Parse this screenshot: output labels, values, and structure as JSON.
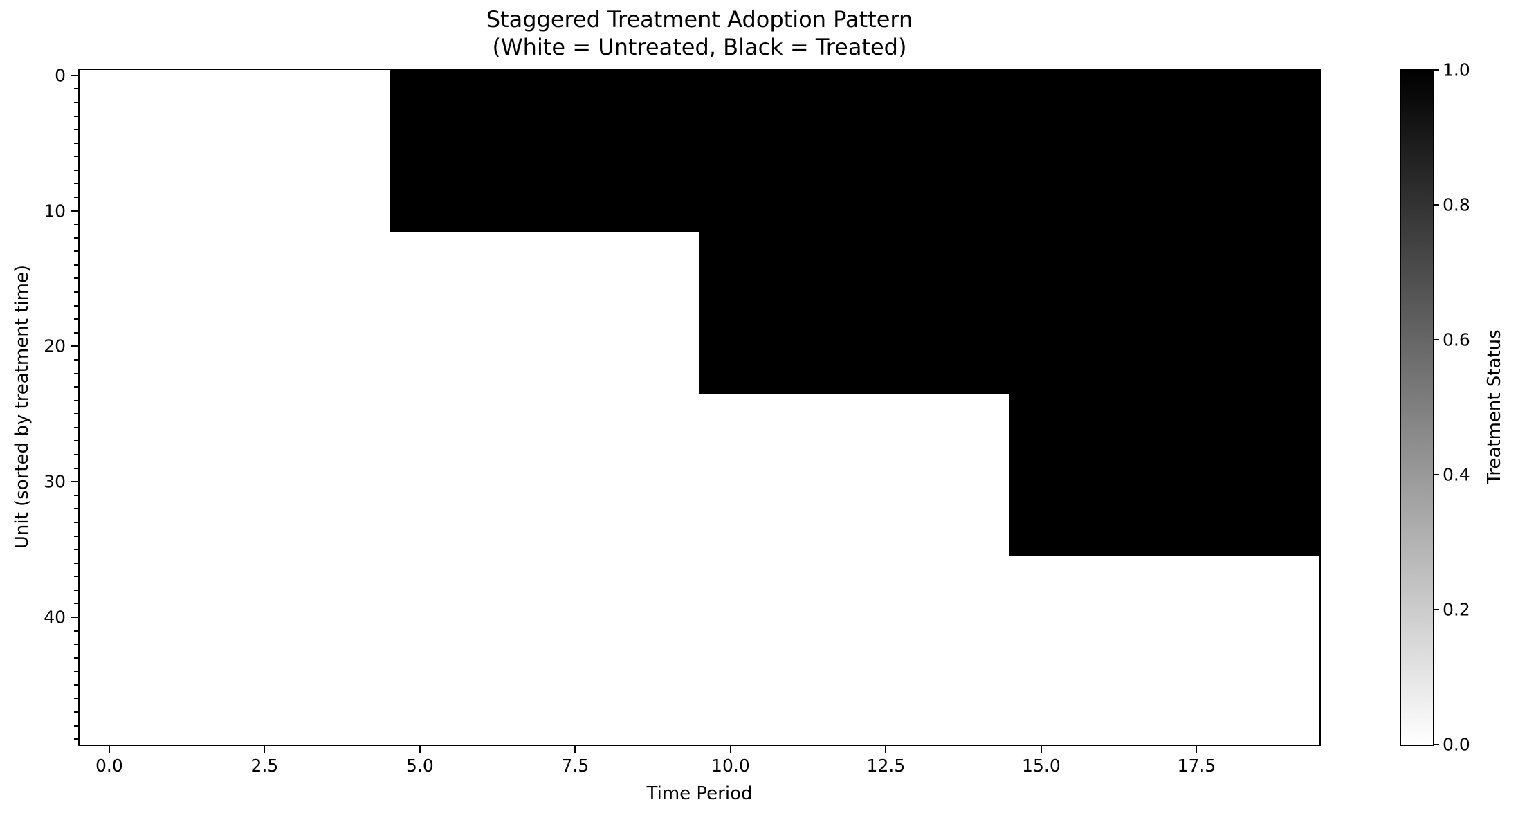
{
  "figure": {
    "background": "#ffffff"
  },
  "chart_data": {
    "type": "heatmap",
    "title_lines": [
      "Staggered Treatment Adoption Pattern",
      "(White = Untreated, Black = Treated)"
    ],
    "xlabel": "Time Period",
    "ylabel": "Unit (sorted by treatment time)",
    "colorbar_label": "Treatment Status",
    "n_units": 50,
    "n_periods": 20,
    "x_range": [
      -0.5,
      19.5
    ],
    "y_range": [
      49.5,
      -0.5
    ],
    "value_range": [
      0.0,
      1.0
    ],
    "grid": false,
    "colors": {
      "treated": "#000000",
      "untreated": "#ffffff"
    },
    "x_ticks": [
      {
        "value": 0.0,
        "label": "0.0"
      },
      {
        "value": 2.5,
        "label": "2.5"
      },
      {
        "value": 5.0,
        "label": "5.0"
      },
      {
        "value": 7.5,
        "label": "7.5"
      },
      {
        "value": 10.0,
        "label": "10.0"
      },
      {
        "value": 12.5,
        "label": "12.5"
      },
      {
        "value": 15.0,
        "label": "15.0"
      },
      {
        "value": 17.5,
        "label": "17.5"
      }
    ],
    "y_ticks": [
      {
        "value": 0,
        "label": "0"
      },
      {
        "value": 10,
        "label": "10"
      },
      {
        "value": 20,
        "label": "20"
      },
      {
        "value": 30,
        "label": "30"
      },
      {
        "value": 40,
        "label": "40"
      }
    ],
    "y_minor_tick_every": 1,
    "colorbar_ticks": [
      {
        "value": 1.0,
        "label": "1.0"
      },
      {
        "value": 0.8,
        "label": "0.8"
      },
      {
        "value": 0.6,
        "label": "0.6"
      },
      {
        "value": 0.4,
        "label": "0.4"
      },
      {
        "value": 0.2,
        "label": "0.2"
      },
      {
        "value": 0.0,
        "label": "0.0"
      }
    ],
    "groups": [
      {
        "unit_start": 0,
        "unit_end": 11,
        "first_treated_period": 5
      },
      {
        "unit_start": 12,
        "unit_end": 23,
        "first_treated_period": 10
      },
      {
        "unit_start": 24,
        "unit_end": 35,
        "first_treated_period": 15
      },
      {
        "unit_start": 36,
        "unit_end": 49,
        "first_treated_period": null
      }
    ]
  }
}
